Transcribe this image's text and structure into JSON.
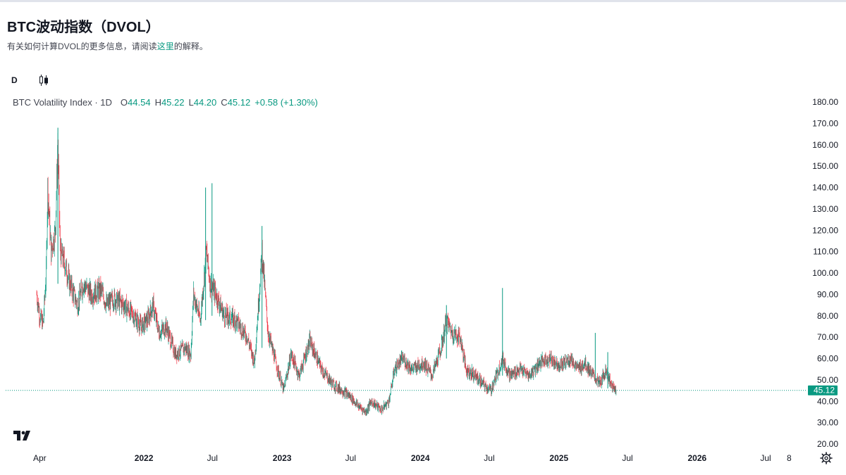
{
  "header": {
    "title": "BTC波动指数（DVOL）",
    "subtitle_before": "有关如何计算DVOL的更多信息，请阅读",
    "subtitle_link": "这里",
    "subtitle_after": "的解释。"
  },
  "toolbar": {
    "interval_label": "D",
    "chart_type_icon": "candlestick-icon"
  },
  "legend": {
    "name": "BTC Volatility Index · 1D",
    "open_key": "O",
    "open": "44.54",
    "high_key": "H",
    "high": "45.22",
    "low_key": "L",
    "low": "44.20",
    "close_key": "C",
    "close": "45.12",
    "change": "+0.58 (+1.30%)"
  },
  "colors": {
    "up": "#089981",
    "down": "#f23645",
    "price_line": "#089981",
    "text": "#131722"
  },
  "icons": {
    "logo": "tradingview-logo-icon",
    "settings": "gear-icon"
  },
  "chart_data": {
    "type": "candlestick",
    "title": "BTC Volatility Index · 1D",
    "x_range": [
      "2021-01-01",
      "2026-10-15"
    ],
    "ylim": [
      20,
      180
    ],
    "y_ticks": [
      "180.00",
      "170.00",
      "160.00",
      "150.00",
      "140.00",
      "130.00",
      "120.00",
      "110.00",
      "100.00",
      "90.00",
      "80.00",
      "70.00",
      "60.00",
      "50.00",
      "40.00",
      "30.00",
      "20.00"
    ],
    "x_ticks": [
      {
        "label": "Apr",
        "date": "2021-04-01",
        "bold": false
      },
      {
        "label": "2022",
        "date": "2022-01-01",
        "bold": true
      },
      {
        "label": "Jul",
        "date": "2022-07-01",
        "bold": false
      },
      {
        "label": "2023",
        "date": "2023-01-01",
        "bold": true
      },
      {
        "label": "Jul",
        "date": "2023-07-01",
        "bold": false
      },
      {
        "label": "2024",
        "date": "2024-01-01",
        "bold": true
      },
      {
        "label": "Jul",
        "date": "2024-07-01",
        "bold": false
      },
      {
        "label": "2025",
        "date": "2025-01-01",
        "bold": true
      },
      {
        "label": "Jul",
        "date": "2025-07-01",
        "bold": false
      },
      {
        "label": "2026",
        "date": "2026-01-01",
        "bold": true
      },
      {
        "label": "Jul",
        "date": "2026-07-01",
        "bold": false
      },
      {
        "label": "8",
        "date": "2026-09-01",
        "bold": false
      }
    ],
    "last_price": 45.12,
    "last_price_label": "45.12",
    "series": [
      {
        "date": "2021-03-24",
        "value": 90
      },
      {
        "date": "2021-04-01",
        "value": 80
      },
      {
        "date": "2021-04-10",
        "value": 76
      },
      {
        "date": "2021-04-18",
        "value": 100
      },
      {
        "date": "2021-04-22",
        "value": 140
      },
      {
        "date": "2021-05-01",
        "value": 110
      },
      {
        "date": "2021-05-12",
        "value": 120
      },
      {
        "date": "2021-05-19",
        "value": 160
      },
      {
        "date": "2021-05-25",
        "value": 110
      },
      {
        "date": "2021-06-05",
        "value": 105
      },
      {
        "date": "2021-06-20",
        "value": 95
      },
      {
        "date": "2021-07-10",
        "value": 85
      },
      {
        "date": "2021-07-25",
        "value": 95
      },
      {
        "date": "2021-08-15",
        "value": 90
      },
      {
        "date": "2021-09-10",
        "value": 92
      },
      {
        "date": "2021-09-25",
        "value": 85
      },
      {
        "date": "2021-10-15",
        "value": 88
      },
      {
        "date": "2021-11-10",
        "value": 85
      },
      {
        "date": "2021-12-05",
        "value": 80
      },
      {
        "date": "2021-12-25",
        "value": 75
      },
      {
        "date": "2022-01-10",
        "value": 78
      },
      {
        "date": "2022-01-25",
        "value": 85
      },
      {
        "date": "2022-02-10",
        "value": 72
      },
      {
        "date": "2022-03-01",
        "value": 75
      },
      {
        "date": "2022-03-25",
        "value": 62
      },
      {
        "date": "2022-04-20",
        "value": 65
      },
      {
        "date": "2022-05-05",
        "value": 62
      },
      {
        "date": "2022-05-12",
        "value": 90
      },
      {
        "date": "2022-05-30",
        "value": 78
      },
      {
        "date": "2022-06-15",
        "value": 110
      },
      {
        "date": "2022-06-25",
        "value": 95
      },
      {
        "date": "2022-07-10",
        "value": 90
      },
      {
        "date": "2022-08-01",
        "value": 80
      },
      {
        "date": "2022-09-01",
        "value": 78
      },
      {
        "date": "2022-10-01",
        "value": 70
      },
      {
        "date": "2022-10-20",
        "value": 58
      },
      {
        "date": "2022-11-09",
        "value": 110
      },
      {
        "date": "2022-11-25",
        "value": 72
      },
      {
        "date": "2022-12-20",
        "value": 55
      },
      {
        "date": "2023-01-05",
        "value": 45
      },
      {
        "date": "2023-01-25",
        "value": 62
      },
      {
        "date": "2023-02-15",
        "value": 52
      },
      {
        "date": "2023-03-15",
        "value": 68
      },
      {
        "date": "2023-04-15",
        "value": 55
      },
      {
        "date": "2023-05-15",
        "value": 48
      },
      {
        "date": "2023-06-10",
        "value": 45
      },
      {
        "date": "2023-07-01",
        "value": 42
      },
      {
        "date": "2023-07-20",
        "value": 38
      },
      {
        "date": "2023-08-10",
        "value": 35
      },
      {
        "date": "2023-08-25",
        "value": 40
      },
      {
        "date": "2023-09-20",
        "value": 36
      },
      {
        "date": "2023-10-10",
        "value": 40
      },
      {
        "date": "2023-10-25",
        "value": 55
      },
      {
        "date": "2023-11-15",
        "value": 60
      },
      {
        "date": "2023-12-10",
        "value": 55
      },
      {
        "date": "2024-01-10",
        "value": 58
      },
      {
        "date": "2024-02-01",
        "value": 52
      },
      {
        "date": "2024-02-25",
        "value": 65
      },
      {
        "date": "2024-03-10",
        "value": 78
      },
      {
        "date": "2024-03-25",
        "value": 72
      },
      {
        "date": "2024-04-15",
        "value": 70
      },
      {
        "date": "2024-05-01",
        "value": 55
      },
      {
        "date": "2024-05-25",
        "value": 52
      },
      {
        "date": "2024-06-15",
        "value": 48
      },
      {
        "date": "2024-07-05",
        "value": 45
      },
      {
        "date": "2024-07-20",
        "value": 52
      },
      {
        "date": "2024-08-05",
        "value": 60
      },
      {
        "date": "2024-08-25",
        "value": 52
      },
      {
        "date": "2024-09-20",
        "value": 55
      },
      {
        "date": "2024-10-15",
        "value": 52
      },
      {
        "date": "2024-11-10",
        "value": 58
      },
      {
        "date": "2024-12-05",
        "value": 60
      },
      {
        "date": "2025-01-05",
        "value": 57
      },
      {
        "date": "2025-02-01",
        "value": 60
      },
      {
        "date": "2025-02-20",
        "value": 55
      },
      {
        "date": "2025-03-10",
        "value": 58
      },
      {
        "date": "2025-04-01",
        "value": 52
      },
      {
        "date": "2025-04-20",
        "value": 48
      },
      {
        "date": "2025-05-05",
        "value": 55
      },
      {
        "date": "2025-05-20",
        "value": 47
      },
      {
        "date": "2025-06-01",
        "value": 45
      }
    ],
    "spikes": [
      {
        "date": "2021-05-19",
        "high": 168,
        "low": 95
      },
      {
        "date": "2022-06-13",
        "high": 140,
        "low": 78
      },
      {
        "date": "2022-06-30",
        "high": 142,
        "low": 80
      },
      {
        "date": "2022-11-09",
        "high": 122,
        "low": 65
      },
      {
        "date": "2024-03-10",
        "high": 85,
        "low": 60
      },
      {
        "date": "2024-08-05",
        "high": 93,
        "low": 52
      },
      {
        "date": "2025-04-07",
        "high": 72,
        "low": 50
      },
      {
        "date": "2025-05-10",
        "high": 63,
        "low": 46
      }
    ]
  }
}
